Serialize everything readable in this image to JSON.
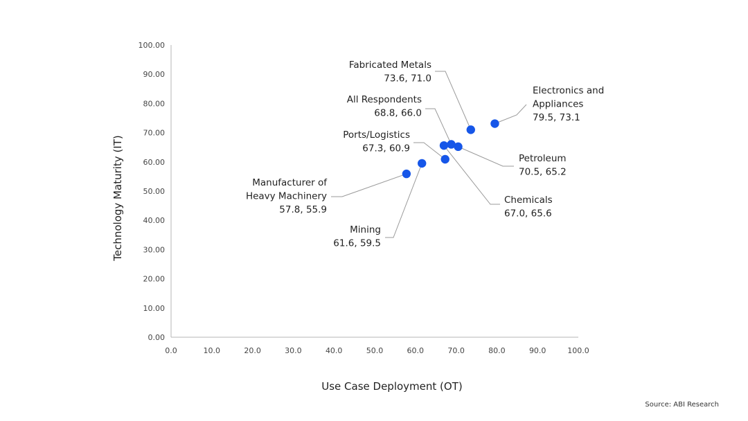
{
  "chart_data": {
    "type": "scatter",
    "xlabel": "Use Case Deployment (OT)",
    "ylabel": "Technology Maturity (IT)",
    "xlim": [
      0,
      100
    ],
    "ylim": [
      0,
      100
    ],
    "x_ticks": [
      "0.0",
      "10.0",
      "20.0",
      "30.0",
      "40.0",
      "50.0",
      "60.0",
      "70.0",
      "80.0",
      "90.0",
      "100.0"
    ],
    "y_ticks": [
      "0.00",
      "10.00",
      "20.00",
      "30.00",
      "40.00",
      "50.00",
      "60.00",
      "70.00",
      "80.00",
      "90.00",
      "100.00"
    ],
    "grid": false,
    "marker_color": "#1656e8",
    "points": [
      {
        "name": "Fabricated Metals",
        "label_lines": [
          "Fabricated Metals",
          "73.6, 71.0"
        ],
        "x": 73.6,
        "y": 71.0
      },
      {
        "name": "Electronics and Appliances",
        "label_lines": [
          "Electronics and",
          "Appliances",
          "79.5, 73.1"
        ],
        "x": 79.5,
        "y": 73.1
      },
      {
        "name": "All Respondents",
        "label_lines": [
          "All Respondents",
          "68.8, 66.0"
        ],
        "x": 68.8,
        "y": 66.0
      },
      {
        "name": "Ports/Logistics",
        "label_lines": [
          "Ports/Logistics",
          "67.3, 60.9"
        ],
        "x": 67.3,
        "y": 60.9
      },
      {
        "name": "Petroleum",
        "label_lines": [
          "Petroleum",
          "70.5, 65.2"
        ],
        "x": 70.5,
        "y": 65.2
      },
      {
        "name": "Chemicals",
        "label_lines": [
          "Chemicals",
          "67.0, 65.6"
        ],
        "x": 67.0,
        "y": 65.6
      },
      {
        "name": "Manufacturer of Heavy Machinery",
        "label_lines": [
          "Manufacturer of",
          "Heavy Machinery",
          "57.8, 55.9"
        ],
        "x": 57.8,
        "y": 55.9
      },
      {
        "name": "Mining",
        "label_lines": [
          "Mining",
          "61.6, 59.5"
        ],
        "x": 61.6,
        "y": 59.5
      }
    ]
  },
  "source": "Source: ABI Research"
}
